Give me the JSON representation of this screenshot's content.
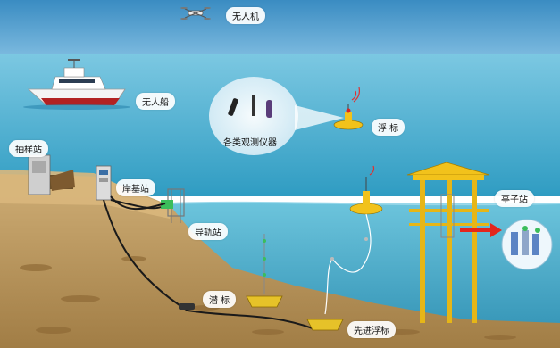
{
  "labels": {
    "drone": "无人机",
    "boat": "无人船",
    "buoy": "浮 标",
    "instruments": "各类观测仪器",
    "sampling_station": "抽样站",
    "shore_station": "岸基站",
    "guide_rail_station": "导轨站",
    "pavilion_station": "亭子站",
    "submersible_buoy": "潜 标",
    "advanced_buoy": "先进浮标"
  },
  "colors": {
    "sky_top": "#3d8fc4",
    "sky_bottom": "#d6ecf7",
    "sea": "#55b7d3",
    "seabed": "#b8975f",
    "shore": "#c9a56a",
    "platform": "#f2c21b",
    "arrow": "#e3261c",
    "cable": "#1a1a1a"
  }
}
